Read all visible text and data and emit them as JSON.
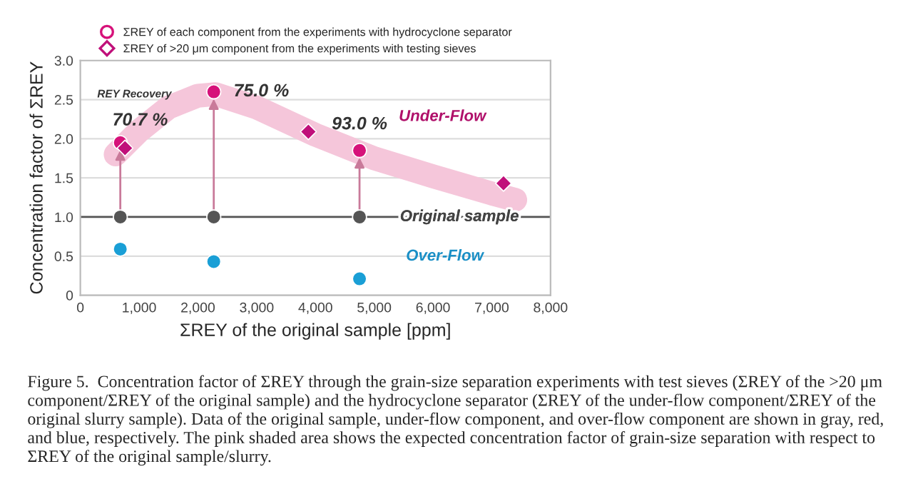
{
  "chart_data": {
    "type": "scatter",
    "xlabel": "ΣREY of the original sample [ppm]",
    "ylabel": "Concentration factor of ΣREY",
    "xlim": [
      0,
      8000
    ],
    "xticks": [
      {
        "value": 0,
        "label": "0"
      },
      {
        "value": 1000,
        "label": "1,000"
      },
      {
        "value": 2000,
        "label": "2,000"
      },
      {
        "value": 3000,
        "label": "3,000"
      },
      {
        "value": 4000,
        "label": "4,000"
      },
      {
        "value": 5000,
        "label": "5,000"
      },
      {
        "value": 6000,
        "label": "6,000"
      },
      {
        "value": 7000,
        "label": "7,000"
      },
      {
        "value": 8000,
        "label": "8,000"
      }
    ],
    "ylim": [
      0,
      3
    ],
    "yticks": [
      {
        "value": 0,
        "label": "0"
      },
      {
        "value": 0.5,
        "label": "0.5"
      },
      {
        "value": 1,
        "label": "1.0"
      },
      {
        "value": 1.5,
        "label": "1.5"
      },
      {
        "value": 2,
        "label": "2.0"
      },
      {
        "value": 2.5,
        "label": "2.5"
      },
      {
        "value": 3,
        "label": "3.0"
      }
    ],
    "grid": "y",
    "legend": "top left",
    "ref_lines": [
      {
        "axis": "y",
        "value": 1.0,
        "color": "#555555"
      }
    ],
    "series": [
      {
        "type": "line",
        "color": "#f5c6da",
        "x": [
          600,
          1000,
          1500,
          2000,
          2300,
          3000,
          4000,
          5000,
          6000,
          7000,
          7400
        ],
        "values": [
          1.8,
          2.1,
          2.4,
          2.55,
          2.57,
          2.4,
          2.05,
          1.75,
          1.52,
          1.3,
          1.22
        ]
      },
      {
        "name": "ΣREY of each component from the experiments with hydrocyclone separator",
        "marker": "circle",
        "color": "#d6127a",
        "x": [
          680,
          2270,
          4750
        ],
        "values": [
          1.95,
          2.6,
          1.85
        ]
      },
      {
        "marker": "circle",
        "color": "#555555",
        "x": [
          680,
          2270,
          4750
        ],
        "values": [
          1.0,
          1.0,
          1.0
        ]
      },
      {
        "marker": "circle",
        "color": "#1a9fd6",
        "x": [
          680,
          2270,
          4750
        ],
        "values": [
          0.59,
          0.43,
          0.21
        ]
      },
      {
        "name": "ΣREY of >20 μm component from the experiments with testing sieves",
        "marker": "diamond",
        "color": "#c0107a",
        "x": [
          760,
          3880,
          7200
        ],
        "values": [
          1.88,
          2.09,
          1.43
        ]
      }
    ],
    "annotations": [
      {
        "text": "70.7 %",
        "x": 680,
        "y": 1.95
      },
      {
        "text": "75.0 %",
        "x": 2270,
        "y": 2.6
      },
      {
        "text": "93.0 %",
        "x": 4750,
        "y": 1.85
      },
      {
        "text": "Original sample",
        "x": 6450,
        "y": 1.0
      },
      "REY Recovery",
      "Under-Flow",
      "Over-Flow",
      "Figure 5.  Concentration factor of ΣREY through the grain-size separation experiments with test sieves (ΣREY of the >20 μm component/ΣREY of the original sample) and the hydrocyclone separator (ΣREY of the under-flow component/ΣREY of the original slurry sample). Data of the original sample, under-flow component, and over-flow component are shown in gray, red, and blue, respectively. The pink shaded area shows the expected concentration factor of grain-size separation with respect to ΣREY of the original sample/slurry."
    ]
  }
}
